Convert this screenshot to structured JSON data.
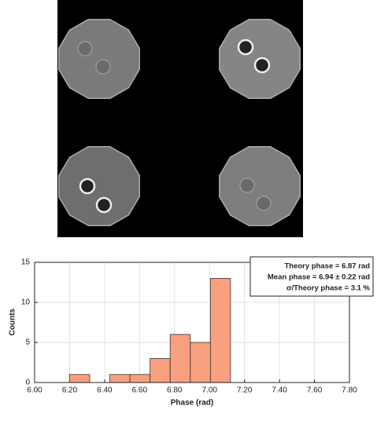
{
  "chart_data": {
    "type": "histogram",
    "x_label": "Phase (rad)",
    "y_label": "Counts",
    "bins": [
      6.2,
      6.315,
      6.43,
      6.545,
      6.66,
      6.775,
      6.89,
      7.005,
      7.12
    ],
    "values": [
      1,
      0,
      1,
      1,
      3,
      6,
      5,
      13
    ],
    "color": "#f9a07f",
    "xlim": [
      6.0,
      7.8
    ],
    "xticks": [
      {
        "value": 6.0,
        "label": "6.00"
      },
      {
        "value": 6.2,
        "label": "6.20"
      },
      {
        "value": 6.4,
        "label": "6.40"
      },
      {
        "value": 6.6,
        "label": "6.60"
      },
      {
        "value": 6.8,
        "label": "6.80"
      },
      {
        "value": 7.0,
        "label": "7.00"
      },
      {
        "value": 7.2,
        "label": "7.20"
      },
      {
        "value": 7.4,
        "label": "7.40"
      },
      {
        "value": 7.6,
        "label": "7.60"
      },
      {
        "value": 7.8,
        "label": "7.80"
      }
    ],
    "ylim": [
      0,
      15
    ],
    "yticks": [
      0,
      5,
      10,
      15
    ],
    "grid": true,
    "annotations": [
      "Theory phase  = 6.87 rad",
      "Mean phase  = 6.94 ± 0.22 rad",
      "σ/Theory phase = 3.1 %"
    ]
  }
}
